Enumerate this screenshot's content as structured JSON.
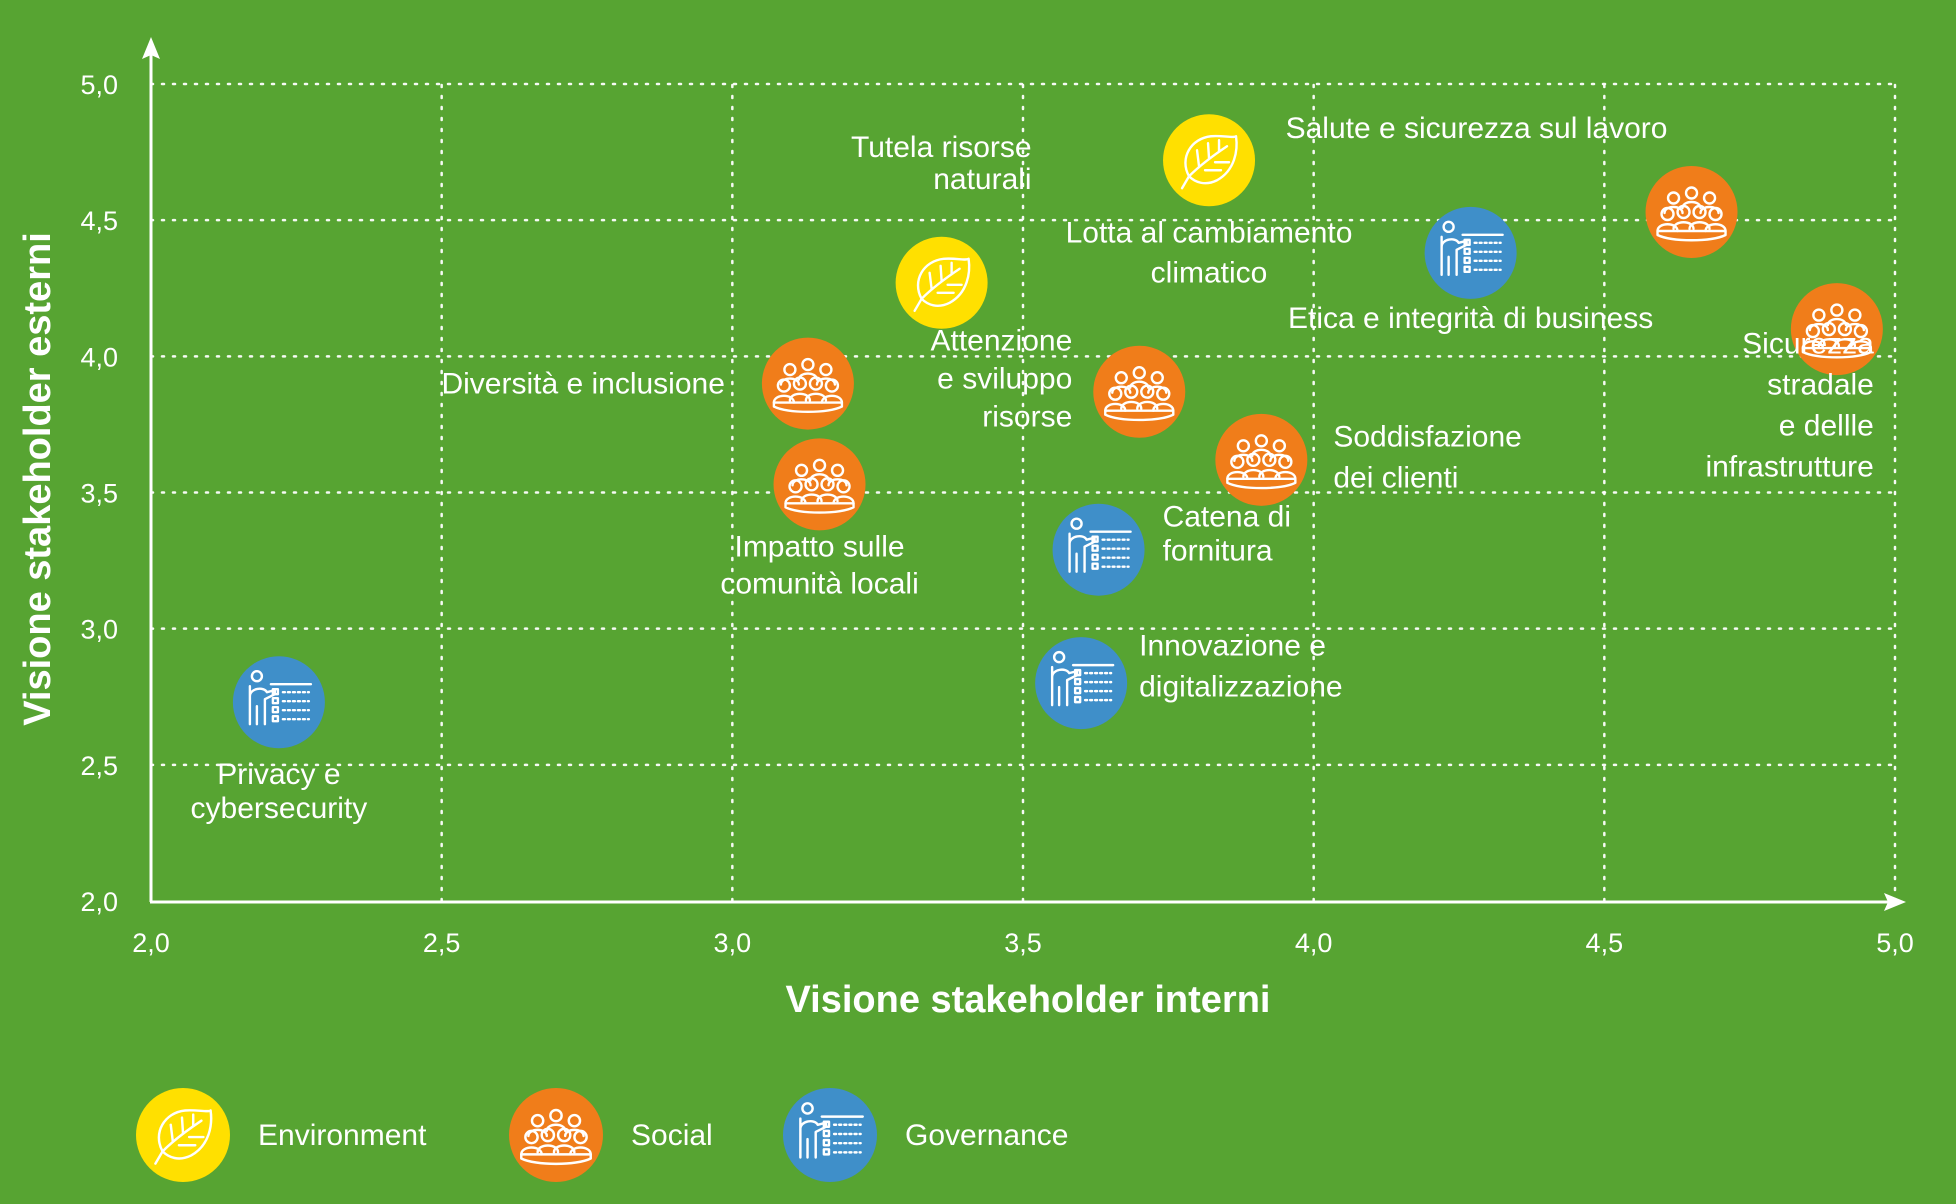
{
  "chart_data": {
    "type": "scatter",
    "title": "",
    "xlabel": "Visione stakeholder interni",
    "ylabel": "Visione stakeholder esterni",
    "xlim": [
      2.0,
      5.0
    ],
    "ylim": [
      2.0,
      5.0
    ],
    "x_ticks": [
      "2,0",
      "2,5",
      "3,0",
      "3,5",
      "4,0",
      "4,5",
      "5,0"
    ],
    "y_ticks": [
      "2,0",
      "2,5",
      "3,0",
      "3,5",
      "4,0",
      "4,5",
      "5,0"
    ],
    "grid": true,
    "categories": {
      "environment": {
        "name": "Environment",
        "color": "#ffe000",
        "icon": "leaf-icon"
      },
      "social": {
        "name": "Social",
        "color": "#f07d1a",
        "icon": "people-group-icon"
      },
      "governance": {
        "name": "Governance",
        "color": "#3f8fc9",
        "icon": "presenter-board-icon"
      }
    },
    "legend_order": [
      "environment",
      "social",
      "governance"
    ],
    "legend_placement": "bottom",
    "points": [
      {
        "label_lines": [
          "Tutela risorse",
          "naturali"
        ],
        "category": "environment",
        "x": 3.36,
        "y": 4.27
      },
      {
        "label_lines": [
          "Lotta al cambiamento",
          "climatico"
        ],
        "category": "environment",
        "x": 3.82,
        "y": 4.72
      },
      {
        "label_lines": [
          "Salute e sicurezza sul lavoro"
        ],
        "category": "social",
        "x": 4.65,
        "y": 4.53
      },
      {
        "label_lines": [
          "Etica e integrità di business"
        ],
        "category": "governance",
        "x": 4.27,
        "y": 4.38
      },
      {
        "label_lines": [
          "Sicurezza",
          "stradale",
          "e dellle",
          "infrastrutture"
        ],
        "category": "social",
        "x": 4.9,
        "y": 4.1
      },
      {
        "label_lines": [
          "Diversità e inclusione"
        ],
        "category": "social",
        "x": 3.13,
        "y": 3.9
      },
      {
        "label_lines": [
          "Attenzione",
          "e sviluppo",
          "risorse"
        ],
        "category": "social",
        "x": 3.7,
        "y": 3.87
      },
      {
        "label_lines": [
          "Soddisfazione",
          "dei clienti"
        ],
        "category": "social",
        "x": 3.91,
        "y": 3.62
      },
      {
        "label_lines": [
          "Impatto sulle",
          "comunità locali"
        ],
        "category": "social",
        "x": 3.15,
        "y": 3.53
      },
      {
        "label_lines": [
          "Catena di",
          "fornitura"
        ],
        "category": "governance",
        "x": 3.63,
        "y": 3.29
      },
      {
        "label_lines": [
          "Innovazione e",
          "digitalizzazione"
        ],
        "category": "governance",
        "x": 3.6,
        "y": 2.8
      },
      {
        "label_lines": [
          "Privacy e",
          "cybersecurity"
        ],
        "category": "governance",
        "x": 2.22,
        "y": 2.73
      }
    ]
  }
}
